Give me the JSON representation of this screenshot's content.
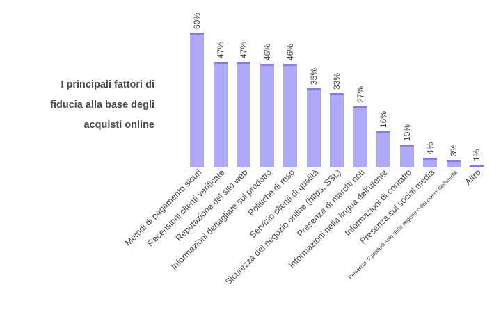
{
  "title": "I principali fattori di fiducia alla base degli acquisti online",
  "title_lines": [
    "I principali fattori di",
    "fiducia alla base degli",
    "acquisti online"
  ],
  "colors": {
    "bar_fill": "#aeaaf7",
    "bar_cap": "#8579e6",
    "axis": "#b8b8b8",
    "text": "#444444"
  },
  "chart_data": {
    "type": "bar",
    "title": "I principali fattori di fiducia alla base degli acquisti online",
    "xlabel": "",
    "ylabel": "",
    "ylim": [
      0,
      60
    ],
    "grid": false,
    "legend": null,
    "categories": [
      "Metodi di pagamento sicuri",
      "Recensioni clienti verificate",
      "Reputazione del sito web",
      "Informazioni dettagliate sul prodotto",
      "Politiche di reso",
      "Servizio clienti di qualità",
      "Sicurezza del negozio online (https, SSL)",
      "Presenza di marchi noti",
      "Informazioni nella lingua dell'utente",
      "Informazioni di contatto",
      "Presenza sui social media",
      "Presenza di prodotti solo della regione o del paese dell'utente",
      "Altro"
    ],
    "values": [
      60,
      47,
      47,
      46,
      46,
      35,
      33,
      27,
      16,
      10,
      4,
      3,
      1
    ],
    "value_labels": [
      "60%",
      "47%",
      "47%",
      "46%",
      "46%",
      "35%",
      "33%",
      "27%",
      "16%",
      "10%",
      "4%",
      "3%",
      "1%"
    ]
  }
}
